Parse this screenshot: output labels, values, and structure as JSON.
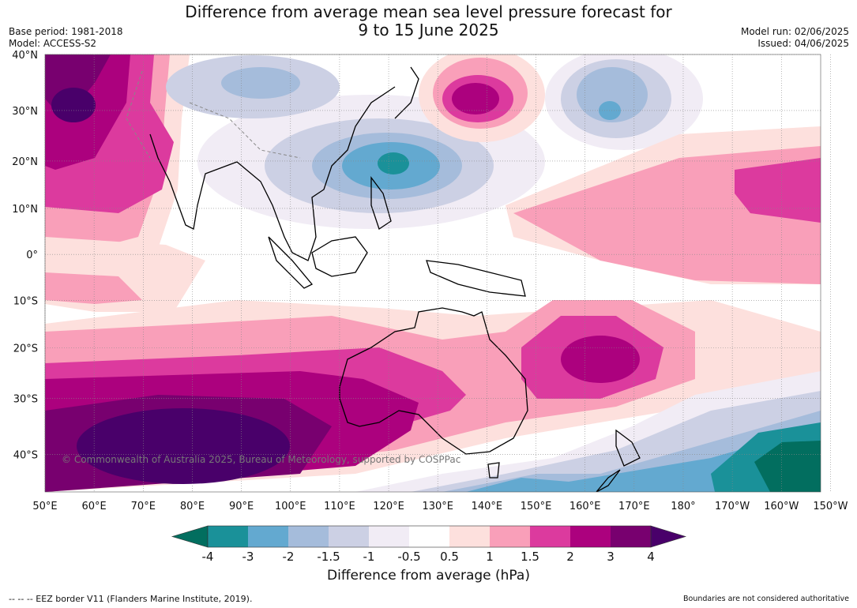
{
  "title_line1": "Difference from average mean sea level pressure forecast for",
  "title_line2": "9 to 15 June 2025",
  "meta_left": {
    "base_period": "Base period: 1981-2018",
    "model": "Model: ACCESS-S2"
  },
  "meta_right": {
    "model_run": "Model run: 02/06/2025",
    "issued": "Issued: 04/06/2025"
  },
  "copyright": "© Commonwealth of Australia 2025, Bureau of Meteorology, supported by COSPPac",
  "footer_left": "--  --  -- EEZ border V11 (Flanders Marine Institute, 2019).",
  "footer_right": "Boundaries are not considered authoritative",
  "map": {
    "lon_labels": [
      "50°E",
      "60°E",
      "70°E",
      "80°E",
      "90°E",
      "100°E",
      "110°E",
      "120°E",
      "130°E",
      "140°E",
      "150°E",
      "160°E",
      "170°E",
      "180°",
      "170°W",
      "160°W",
      "150°W"
    ],
    "lat_labels": [
      "40°N",
      "30°N",
      "20°N",
      "10°N",
      "0°",
      "10°S",
      "20°S",
      "30°S",
      "40°S"
    ],
    "lon_range": [
      50,
      208
    ],
    "lat_range": [
      -46,
      40
    ]
  },
  "colorbar": {
    "title": "Difference from average (hPa)",
    "tick_labels": [
      "-4",
      "-3",
      "-2",
      "-1.5",
      "-1",
      "-0.5",
      "0.5",
      "1",
      "1.5",
      "2",
      "3",
      "4"
    ],
    "colors": [
      "#1a9199",
      "#63a9d0",
      "#a5bcdb",
      "#ccd0e4",
      "#f1ecf5",
      "#ffffff",
      "#fde0dd",
      "#f99fb9",
      "#dc3a9e",
      "#ac017e",
      "#78006f"
    ],
    "under_color": "#026e5f",
    "over_color": "#49006a"
  },
  "colors": {
    "ocean_neutral": "#ffffff",
    "grid": "#888888",
    "coast": "#000000",
    "border": "#888888"
  }
}
